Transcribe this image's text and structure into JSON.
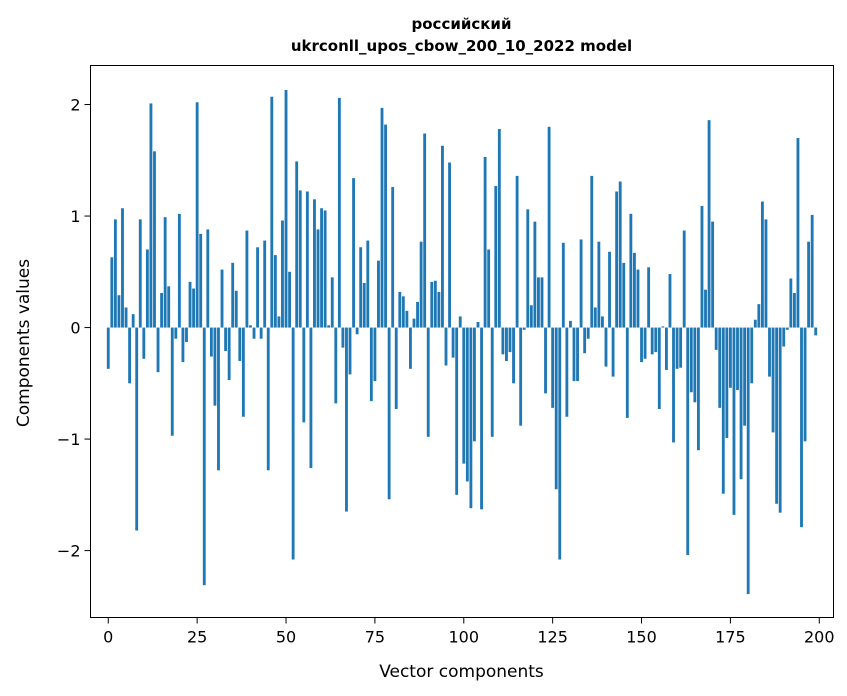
{
  "chart_data": {
    "type": "bar",
    "title_line1": "российский",
    "title_line2": "ukrconll_upos_cbow_200_10_2022 model",
    "xlabel": "Vector components",
    "ylabel": "Components values",
    "xlim": [
      -5,
      204
    ],
    "ylim": [
      -2.6,
      2.35
    ],
    "xticks": [
      0,
      25,
      50,
      75,
      100,
      125,
      150,
      175,
      200
    ],
    "xtick_labels": [
      "0",
      "25",
      "50",
      "75",
      "100",
      "125",
      "150",
      "175",
      "200"
    ],
    "yticks": [
      -2,
      -1,
      0,
      1,
      2
    ],
    "ytick_labels": [
      "−2",
      "−1",
      "0",
      "1",
      "2"
    ],
    "bar_color": "#1f77b4",
    "grid": false,
    "x": [
      0,
      1,
      2,
      3,
      4,
      5,
      6,
      7,
      8,
      9,
      10,
      11,
      12,
      13,
      14,
      15,
      16,
      17,
      18,
      19,
      20,
      21,
      22,
      23,
      24,
      25,
      26,
      27,
      28,
      29,
      30,
      31,
      32,
      33,
      34,
      35,
      36,
      37,
      38,
      39,
      40,
      41,
      42,
      43,
      44,
      45,
      46,
      47,
      48,
      49,
      50,
      51,
      52,
      53,
      54,
      55,
      56,
      57,
      58,
      59,
      60,
      61,
      62,
      63,
      64,
      65,
      66,
      67,
      68,
      69,
      70,
      71,
      72,
      73,
      74,
      75,
      76,
      77,
      78,
      79,
      80,
      81,
      82,
      83,
      84,
      85,
      86,
      87,
      88,
      89,
      90,
      91,
      92,
      93,
      94,
      95,
      96,
      97,
      98,
      99,
      100,
      101,
      102,
      103,
      104,
      105,
      106,
      107,
      108,
      109,
      110,
      111,
      112,
      113,
      114,
      115,
      116,
      117,
      118,
      119,
      120,
      121,
      122,
      123,
      124,
      125,
      126,
      127,
      128,
      129,
      130,
      131,
      132,
      133,
      134,
      135,
      136,
      137,
      138,
      139,
      140,
      141,
      142,
      143,
      144,
      145,
      146,
      147,
      148,
      149,
      150,
      151,
      152,
      153,
      154,
      155,
      156,
      157,
      158,
      159,
      160,
      161,
      162,
      163,
      164,
      165,
      166,
      167,
      168,
      169,
      170,
      171,
      172,
      173,
      174,
      175,
      176,
      177,
      178,
      179,
      180,
      181,
      182,
      183,
      184,
      185,
      186,
      187,
      188,
      189,
      190,
      191,
      192,
      193,
      194,
      195,
      196,
      197,
      198,
      199
    ],
    "values": [
      -0.37,
      0.63,
      0.97,
      0.29,
      1.07,
      0.18,
      -0.5,
      0.12,
      -1.82,
      0.97,
      -0.28,
      0.7,
      2.01,
      1.58,
      -0.4,
      0.31,
      0.99,
      0.37,
      -0.97,
      -0.1,
      1.02,
      -0.31,
      -0.13,
      0.41,
      0.35,
      2.02,
      0.84,
      -2.31,
      0.88,
      -0.26,
      -0.7,
      -1.28,
      0.52,
      -0.21,
      -0.47,
      0.58,
      0.33,
      -0.3,
      -0.8,
      0.87,
      0.02,
      -0.1,
      0.72,
      -0.1,
      0.78,
      -1.28,
      2.07,
      0.65,
      0.1,
      0.96,
      2.13,
      0.5,
      -2.08,
      1.49,
      1.23,
      -0.85,
      1.22,
      -1.26,
      1.15,
      0.88,
      1.07,
      1.05,
      0.02,
      0.45,
      -0.68,
      2.06,
      -0.18,
      -1.65,
      -0.42,
      1.34,
      -0.06,
      0.72,
      0.4,
      0.78,
      -0.66,
      -0.48,
      0.6,
      1.97,
      1.82,
      -1.54,
      1.26,
      -0.73,
      0.32,
      0.28,
      0.15,
      -0.37,
      0.08,
      0.23,
      0.77,
      1.74,
      -0.98,
      0.41,
      0.42,
      0.32,
      1.63,
      -0.34,
      1.48,
      -0.27,
      -1.5,
      0.1,
      -1.22,
      -1.38,
      -1.62,
      -1.02,
      0.05,
      -1.63,
      1.53,
      0.7,
      -0.98,
      1.27,
      1.78,
      -0.24,
      -0.3,
      -0.22,
      -0.5,
      1.36,
      -0.88,
      -0.02,
      1.06,
      0.2,
      0.95,
      0.45,
      0.45,
      -0.59,
      1.8,
      -0.72,
      -1.45,
      -2.08,
      0.76,
      -0.8,
      0.06,
      -0.48,
      -0.48,
      0.79,
      -0.23,
      -0.1,
      1.36,
      0.18,
      0.77,
      0.1,
      -0.35,
      0.68,
      -0.44,
      1.22,
      1.31,
      0.58,
      -0.81,
      1.02,
      0.67,
      0.52,
      -0.31,
      -0.28,
      0.54,
      -0.24,
      -0.22,
      -0.73,
      0.01,
      -0.38,
      0.48,
      -1.03,
      -0.37,
      -0.36,
      0.87,
      -2.04,
      -0.58,
      -0.67,
      -1.1,
      1.09,
      0.34,
      1.86,
      0.95,
      -0.2,
      -0.72,
      -1.49,
      -0.99,
      -0.54,
      -1.68,
      -0.56,
      -1.36,
      -0.88,
      -2.39,
      -0.5,
      0.07,
      0.21,
      1.13,
      0.97,
      -0.44,
      -0.94,
      -1.58,
      -1.66,
      -0.17,
      -0.02,
      0.44,
      0.31,
      1.7,
      -1.79,
      -1.02,
      0.77,
      1.01,
      -0.07
    ]
  }
}
